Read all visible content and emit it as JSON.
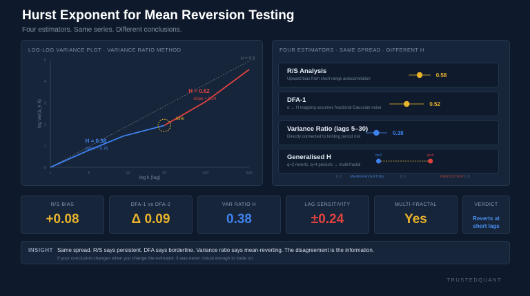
{
  "header": {
    "title": "Hurst Exponent for Mean Reversion Testing",
    "subtitle": "Four estimators. Same series. Different conclusions."
  },
  "left_panel": {
    "title": "LOG-LOG VARIANCE PLOT · VARIANCE RATIO METHOD",
    "chart_data": {
      "type": "line",
      "xlabel": "log k (lag)",
      "ylabel": "log Var(Δ_k X)",
      "x_ticks": [
        "1",
        "5",
        "10",
        "20",
        "100",
        "500"
      ],
      "y_ticks": [
        "0",
        "1",
        "2",
        "3",
        "4",
        "5"
      ],
      "reference_label": "H = 0.5",
      "series": [
        {
          "name": "H = 0.38",
          "sub": "slope = 0.76",
          "color": "#3f82ee",
          "points": [
            [
              0,
              0
            ],
            [
              0.8,
              0.8
            ],
            [
              1.5,
              1.45
            ],
            [
              2.35,
              1.95
            ]
          ]
        },
        {
          "name": "H = 0.62",
          "sub": "slope = 1.24",
          "color": "#e0433f",
          "points": [
            [
              2.35,
              1.95
            ],
            [
              3.2,
              3.05
            ],
            [
              4.1,
              4.55
            ]
          ]
        }
      ],
      "reference": {
        "points": [
          [
            0,
            0
          ],
          [
            4.1,
            4.95
          ]
        ],
        "color": "#6b7788"
      },
      "annotation": {
        "label": "kink",
        "x": 2.35,
        "y": 1.95,
        "color": "#e8b32c"
      }
    }
  },
  "right_panel": {
    "title": "FOUR ESTIMATORS · SAME SPREAD · DIFFERENT H",
    "estimators": [
      {
        "name": "R/S Analysis",
        "note": "Upward bias from short-range autocorrelation",
        "value": "0.58",
        "h": 0.58,
        "range": [
          0.53,
          0.63
        ],
        "color": "#e8b32c"
      },
      {
        "name": "DFA-1",
        "note": "α → H mapping assumes fractional Gaussian noise",
        "value": "0.52",
        "h": 0.52,
        "range": [
          0.44,
          0.6
        ],
        "color": "#e8b32c"
      },
      {
        "name": "Variance Ratio (lags 5–30)",
        "note": "Directly connected to holding period risk",
        "value": "0.38",
        "h": 0.38,
        "range": [
          0.33,
          0.43
        ],
        "color": "#3f82ee"
      },
      {
        "name": "Generalised H",
        "note": "q=2 reverts, q=4 persists → multi-fractal",
        "q2_label": "q=2",
        "q4_label": "q=4",
        "q2": 0.39,
        "q4": 0.63,
        "q2_color": "#3f82ee",
        "q4_color": "#e0433f"
      }
    ],
    "axis": {
      "left": "0.2",
      "left_text": "MEAN-REVERTING",
      "mid": "0.5",
      "right_text": "PERSISTENT",
      "right": "0.8"
    }
  },
  "kpis": [
    {
      "label": "R/S BIAS",
      "value": "+0.08",
      "color": "#e8b32c"
    },
    {
      "label": "DFA-1 vs DFA-2",
      "value": "Δ 0.09",
      "color": "#e8b32c"
    },
    {
      "label": "VAR RATIO H",
      "value": "0.38",
      "color": "#3f82ee"
    },
    {
      "label": "LAG SENSITIVITY",
      "value": "±0.24",
      "color": "#e0433f"
    },
    {
      "label": "MULTI-FRACTAL",
      "value": "Yes",
      "color": "#e8b32c"
    }
  ],
  "verdict": {
    "label": "VERDICT",
    "line1": "Reverts at",
    "line2": "short lags"
  },
  "insight": {
    "label": "INSIGHT",
    "text": "Same spread. R/S says persistent. DFA says borderline. Variance ratio says mean-reverting. The disagreement is the information.",
    "sub": "If your conclusion changes when you change the estimator, it was never robust enough to trade on."
  },
  "brand": "TRUSTEDQUANT"
}
